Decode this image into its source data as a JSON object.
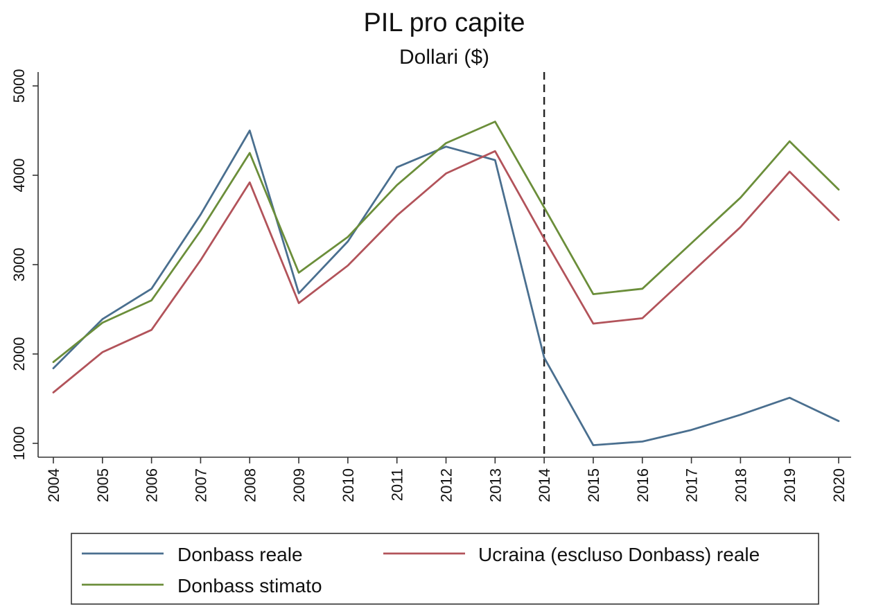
{
  "chart_data": {
    "type": "line",
    "title": "PIL pro capite",
    "subtitle": "Dollari ($)",
    "xlabel": "",
    "ylabel": "",
    "x": [
      2004,
      2005,
      2006,
      2007,
      2008,
      2009,
      2010,
      2011,
      2012,
      2013,
      2014,
      2015,
      2016,
      2017,
      2018,
      2019,
      2020
    ],
    "x_tick_labels": [
      "2004",
      "2005",
      "2006",
      "2007",
      "2008",
      "2009",
      "2010",
      "2011",
      "2012",
      "2013",
      "2014",
      "2015",
      "2016",
      "2017",
      "2018",
      "2019",
      "2020"
    ],
    "y_ticks": [
      1000,
      2000,
      3000,
      4000,
      5000
    ],
    "y_tick_labels": [
      "1000",
      "2000",
      "3000",
      "4000",
      "5000"
    ],
    "xlim": [
      2004,
      2020
    ],
    "ylim": [
      1000,
      5000
    ],
    "grid": false,
    "legend_position": "bottom",
    "vline": {
      "x": 2014,
      "style": "dashed",
      "color": "#222222"
    },
    "series": [
      {
        "name": "Donbass reale",
        "color": "#4a6f8f",
        "values": [
          1840,
          2390,
          2730,
          3560,
          4500,
          2680,
          3260,
          4090,
          4320,
          4170,
          1960,
          980,
          1020,
          1150,
          1320,
          1510,
          1250
        ]
      },
      {
        "name": "Ucraina (escluso Donbass) reale",
        "color": "#b2535a",
        "values": [
          1570,
          2020,
          2270,
          3050,
          3920,
          2570,
          2990,
          3550,
          4020,
          4270,
          3290,
          2340,
          2400,
          2910,
          3420,
          4040,
          3500
        ]
      },
      {
        "name": "Donbass stimato",
        "color": "#6b8e3a",
        "values": [
          1910,
          2350,
          2600,
          3380,
          4250,
          2910,
          3310,
          3890,
          4360,
          4600,
          3640,
          2670,
          2730,
          3240,
          3750,
          4380,
          3840
        ]
      }
    ]
  }
}
